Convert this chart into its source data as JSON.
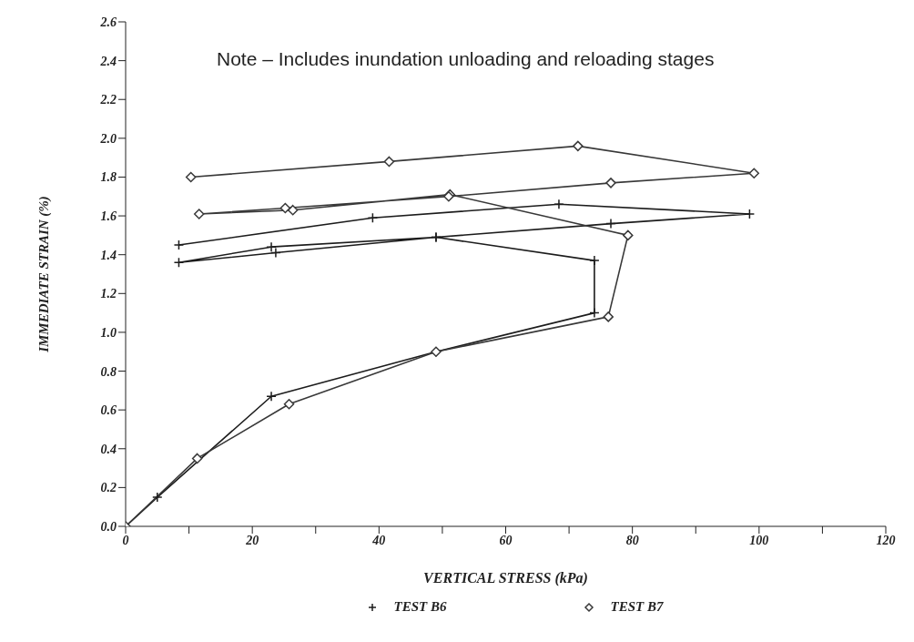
{
  "chart_data": {
    "type": "line",
    "xlabel": "VERTICAL STRESS (kPa)",
    "ylabel": "IMMEDIATE STRAIN (%)",
    "annotations": [
      "Note – Includes inundation unloading and reloading stages"
    ],
    "xlim": [
      0,
      120
    ],
    "xticks": [
      0,
      {
        "value": 10,
        "label": null
      },
      20,
      {
        "value": 30,
        "label": null
      },
      40,
      {
        "value": 50,
        "label": null
      },
      60,
      {
        "value": 70,
        "label": null
      },
      80,
      {
        "value": 90,
        "label": null
      },
      100,
      {
        "value": 110,
        "label": null
      },
      120
    ],
    "ylim": [
      0,
      2.6
    ],
    "yticks": [
      {
        "value": 0,
        "label": "0.0"
      },
      {
        "value": 0.2,
        "label": "0.2"
      },
      {
        "value": 0.4,
        "label": "0.4"
      },
      {
        "value": 0.6,
        "label": "0.6"
      },
      {
        "value": 0.8,
        "label": "0.8"
      },
      {
        "value": 1,
        "label": "1.0"
      },
      {
        "value": 1.2,
        "label": "1.2"
      },
      {
        "value": 1.4,
        "label": "1.4"
      },
      {
        "value": 1.6,
        "label": "1.6"
      },
      {
        "value": 1.8,
        "label": "1.8"
      },
      {
        "value": 2,
        "label": "2.0"
      },
      {
        "value": 2.2,
        "label": "2.2"
      },
      {
        "value": 2.4,
        "label": "2.4"
      },
      {
        "value": 2.6,
        "label": "2.6"
      }
    ],
    "grid": false,
    "legend": "bottom",
    "line_style": "solid",
    "series": [
      {
        "name": "TEST B6",
        "color": "#1c1c1c",
        "marker": "cross",
        "x": [
          0,
          5,
          23,
          49,
          74,
          74,
          49,
          23,
          8.4,
          23.7,
          49,
          76.6,
          98.5,
          68.4,
          39,
          8.4
        ],
        "values": [
          0,
          0.15,
          0.67,
          0.9,
          1.1,
          1.37,
          1.49,
          1.44,
          1.36,
          1.41,
          1.49,
          1.56,
          1.61,
          1.66,
          1.59,
          1.45
        ]
      },
      {
        "name": "TEST B7",
        "color": "#383838",
        "marker": "diamond",
        "x": [
          0,
          11.3,
          25.8,
          49,
          76.2,
          79.3,
          51.2,
          26.4,
          11.6,
          25.2,
          51,
          76.6,
          99.2,
          71.4,
          41.6,
          10.3
        ],
        "values": [
          0,
          0.35,
          0.63,
          0.9,
          1.08,
          1.5,
          1.71,
          1.63,
          1.61,
          1.64,
          1.7,
          1.77,
          1.82,
          1.96,
          1.88,
          1.8
        ]
      }
    ]
  }
}
